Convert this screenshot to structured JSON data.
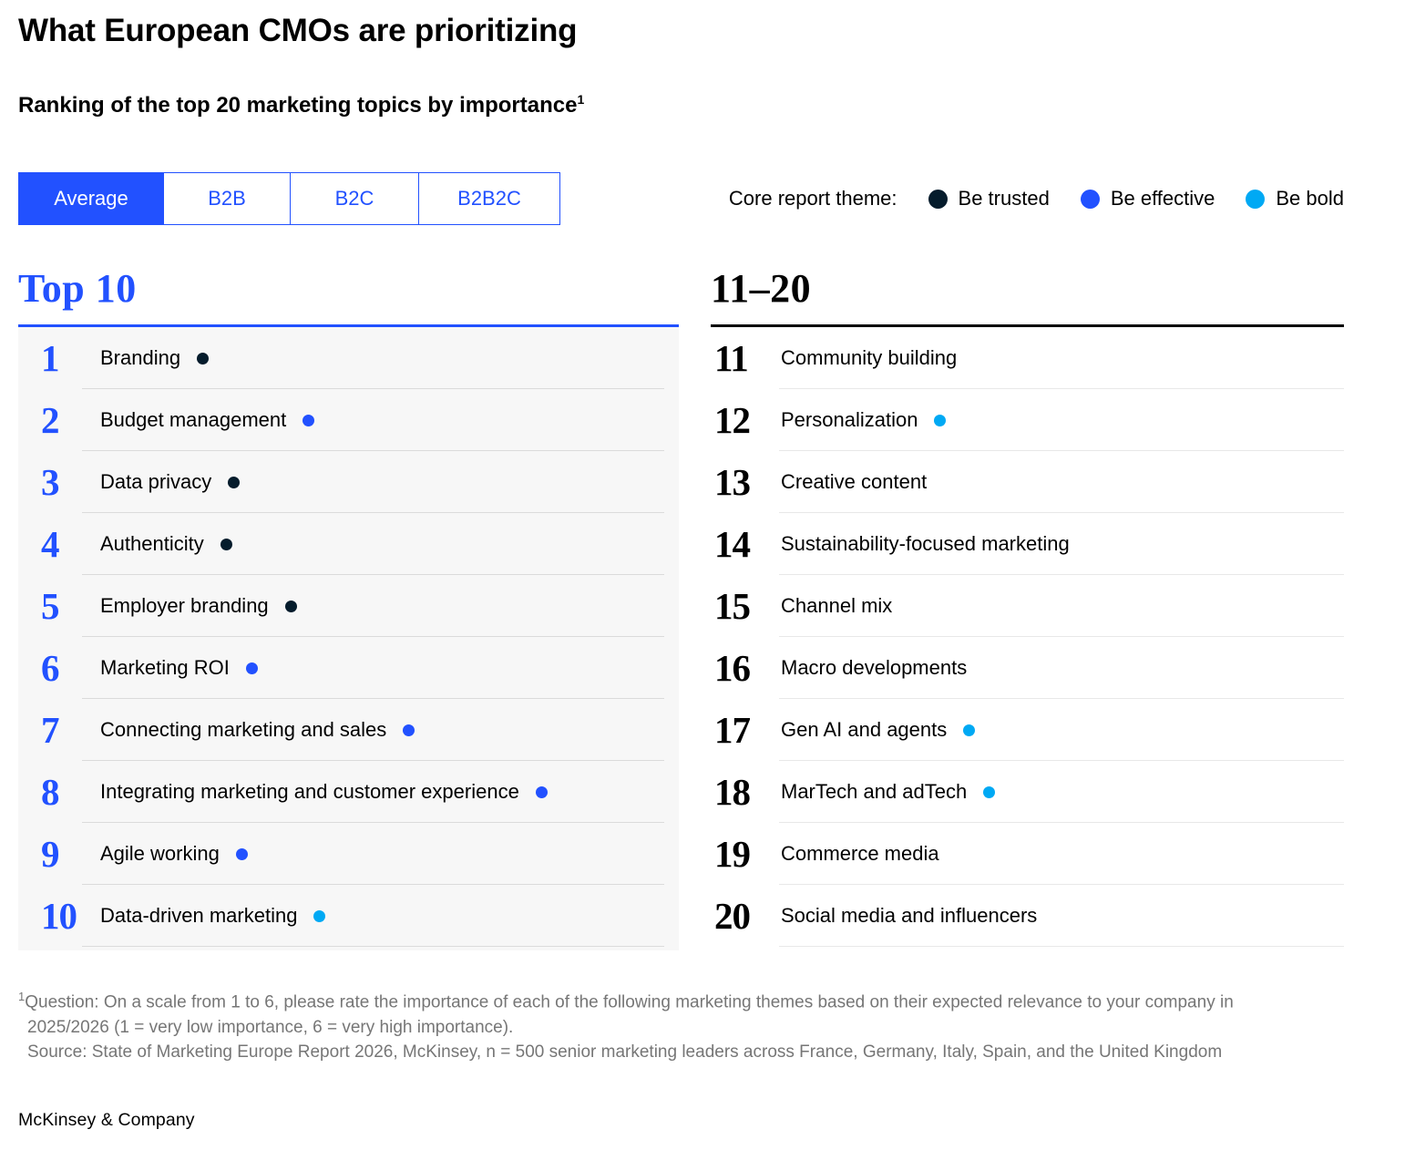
{
  "header": {
    "title": "What European CMOs are prioritizing",
    "subtitle": "Ranking of the top 20 marketing topics by importance",
    "footnote_marker": "1"
  },
  "tabs": [
    {
      "label": "Average",
      "active": true
    },
    {
      "label": "B2B",
      "active": false
    },
    {
      "label": "B2C",
      "active": false
    },
    {
      "label": "B2B2C",
      "active": false
    }
  ],
  "legend": {
    "label": "Core report theme:",
    "items": [
      {
        "label": "Be trusted",
        "theme": "trusted"
      },
      {
        "label": "Be effective",
        "theme": "effective"
      },
      {
        "label": "Be bold",
        "theme": "bold"
      }
    ]
  },
  "theme_colors": {
    "trusted": "#051C2C",
    "effective": "#2251FF",
    "bold": "#00A9F4"
  },
  "rankings": {
    "left": {
      "heading": "Top 10",
      "items": [
        {
          "rank": "1",
          "label": "Branding",
          "theme": "trusted"
        },
        {
          "rank": "2",
          "label": "Budget management",
          "theme": "effective"
        },
        {
          "rank": "3",
          "label": "Data privacy",
          "theme": "trusted"
        },
        {
          "rank": "4",
          "label": "Authenticity",
          "theme": "trusted"
        },
        {
          "rank": "5",
          "label": "Employer branding",
          "theme": "trusted"
        },
        {
          "rank": "6",
          "label": "Marketing ROI",
          "theme": "effective"
        },
        {
          "rank": "7",
          "label": "Connecting marketing and sales",
          "theme": "effective"
        },
        {
          "rank": "8",
          "label": "Integrating marketing and customer experience",
          "theme": "effective"
        },
        {
          "rank": "9",
          "label": "Agile working",
          "theme": "effective"
        },
        {
          "rank": "10",
          "label": "Data-driven marketing",
          "theme": "bold"
        }
      ]
    },
    "right": {
      "heading": "11–20",
      "items": [
        {
          "rank": "11",
          "label": "Community building",
          "theme": null
        },
        {
          "rank": "12",
          "label": "Personalization",
          "theme": "bold"
        },
        {
          "rank": "13",
          "label": "Creative content",
          "theme": null
        },
        {
          "rank": "14",
          "label": "Sustainability-focused marketing",
          "theme": null
        },
        {
          "rank": "15",
          "label": "Channel mix",
          "theme": null
        },
        {
          "rank": "16",
          "label": "Macro developments",
          "theme": null
        },
        {
          "rank": "17",
          "label": "Gen AI and agents",
          "theme": "bold"
        },
        {
          "rank": "18",
          "label": "MarTech and adTech",
          "theme": "bold"
        },
        {
          "rank": "19",
          "label": "Commerce media",
          "theme": null
        },
        {
          "rank": "20",
          "label": "Social media and influencers",
          "theme": null
        }
      ]
    }
  },
  "footnote": {
    "marker": "1",
    "question": "Question: On a scale from 1 to 6, please rate the importance of each of the following marketing themes based on their expected relevance to your company in 2025/2026 (1 = very low importance, 6 = very high importance).",
    "source": "Source: State of Marketing Europe Report 2026, McKinsey, n = 500 senior marketing leaders across France, Germany, Italy, Spain, and the United Kingdom"
  },
  "footer": {
    "logo": "McKinsey & Company"
  },
  "chart_data": {
    "type": "table",
    "title": "What European CMOs are prioritizing",
    "subtitle": "Ranking of the top 20 marketing topics by importance",
    "selected_view": "Average",
    "views": [
      "Average",
      "B2B",
      "B2C",
      "B2B2C"
    ],
    "legend": [
      "Be trusted",
      "Be effective",
      "Be bold"
    ],
    "ranking": [
      {
        "rank": 1,
        "topic": "Branding",
        "core_report_theme": "Be trusted"
      },
      {
        "rank": 2,
        "topic": "Budget management",
        "core_report_theme": "Be effective"
      },
      {
        "rank": 3,
        "topic": "Data privacy",
        "core_report_theme": "Be trusted"
      },
      {
        "rank": 4,
        "topic": "Authenticity",
        "core_report_theme": "Be trusted"
      },
      {
        "rank": 5,
        "topic": "Employer branding",
        "core_report_theme": "Be trusted"
      },
      {
        "rank": 6,
        "topic": "Marketing ROI",
        "core_report_theme": "Be effective"
      },
      {
        "rank": 7,
        "topic": "Connecting marketing and sales",
        "core_report_theme": "Be effective"
      },
      {
        "rank": 8,
        "topic": "Integrating marketing and customer experience",
        "core_report_theme": "Be effective"
      },
      {
        "rank": 9,
        "topic": "Agile working",
        "core_report_theme": "Be effective"
      },
      {
        "rank": 10,
        "topic": "Data-driven marketing",
        "core_report_theme": "Be bold"
      },
      {
        "rank": 11,
        "topic": "Community building",
        "core_report_theme": null
      },
      {
        "rank": 12,
        "topic": "Personalization",
        "core_report_theme": "Be bold"
      },
      {
        "rank": 13,
        "topic": "Creative content",
        "core_report_theme": null
      },
      {
        "rank": 14,
        "topic": "Sustainability-focused marketing",
        "core_report_theme": null
      },
      {
        "rank": 15,
        "topic": "Channel mix",
        "core_report_theme": null
      },
      {
        "rank": 16,
        "topic": "Macro developments",
        "core_report_theme": null
      },
      {
        "rank": 17,
        "topic": "Gen AI and agents",
        "core_report_theme": "Be bold"
      },
      {
        "rank": 18,
        "topic": "MarTech and adTech",
        "core_report_theme": "Be bold"
      },
      {
        "rank": 19,
        "topic": "Commerce media",
        "core_report_theme": null
      },
      {
        "rank": 20,
        "topic": "Social media and influencers",
        "core_report_theme": null
      }
    ]
  }
}
